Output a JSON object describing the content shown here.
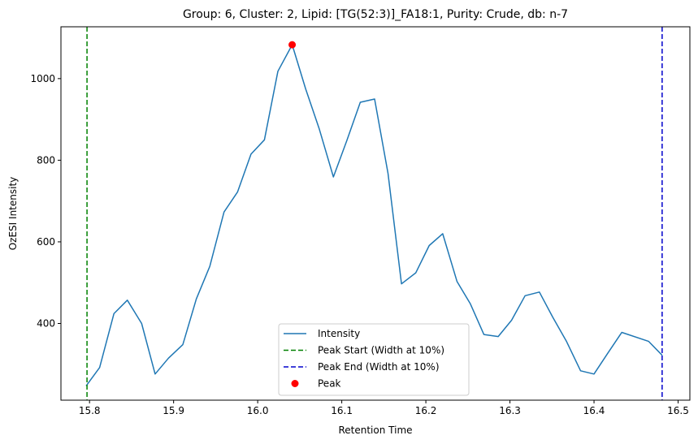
{
  "chart_data": {
    "type": "line",
    "title": "Group: 6, Cluster: 2, Lipid: [TG(52:3)]_FA18:1, Purity: Crude, db: n-7",
    "xlabel": "Retention Time",
    "ylabel": "OzESI Intensity",
    "xlim": [
      15.766,
      16.514
    ],
    "ylim": [
      212,
      1127
    ],
    "x_ticks": [
      15.8,
      15.9,
      16.0,
      16.1,
      16.2,
      16.3,
      16.4,
      16.5
    ],
    "x_tick_labels": [
      "15.8",
      "15.9",
      "16.0",
      "16.1",
      "16.2",
      "16.3",
      "16.4",
      "16.5"
    ],
    "y_ticks": [
      400,
      600,
      800,
      1000
    ],
    "y_tick_labels": [
      "400",
      "600",
      "800",
      "1000"
    ],
    "grid": false,
    "legend_position": "lower center",
    "series": [
      {
        "name": "Intensity",
        "color": "#1f77b4",
        "x": [
          15.796,
          15.812,
          15.829,
          15.845,
          15.862,
          15.878,
          15.894,
          15.911,
          15.927,
          15.943,
          15.96,
          15.976,
          15.992,
          16.008,
          16.024,
          16.041,
          16.057,
          16.073,
          16.09,
          16.106,
          16.122,
          16.139,
          16.155,
          16.171,
          16.188,
          16.204,
          16.22,
          16.237,
          16.253,
          16.269,
          16.286,
          16.302,
          16.318,
          16.335,
          16.351,
          16.367,
          16.384,
          16.4,
          16.416,
          16.433,
          16.465,
          16.481
        ],
        "y": [
          247,
          292,
          424,
          457,
          400,
          276,
          315,
          348,
          460,
          540,
          673,
          722,
          815,
          850,
          1018,
          1083,
          975,
          878,
          759,
          848,
          942,
          950,
          768,
          497,
          524,
          591,
          620,
          503,
          448,
          373,
          368,
          408,
          468,
          477,
          415,
          357,
          284,
          276,
          326,
          378,
          356,
          322
        ]
      }
    ],
    "vertical_lines": [
      {
        "name": "Peak Start (Width at 10%)",
        "x": 15.797,
        "color": "#008000",
        "style": "dashed"
      },
      {
        "name": "Peak End (Width at 10%)",
        "x": 16.481,
        "color": "#0000cc",
        "style": "dashed"
      }
    ],
    "markers": [
      {
        "name": "Peak",
        "x": 16.041,
        "y": 1083,
        "color": "#ff0000"
      }
    ],
    "legend": [
      "Intensity",
      "Peak Start (Width at 10%)",
      "Peak End (Width at 10%)",
      "Peak"
    ]
  }
}
